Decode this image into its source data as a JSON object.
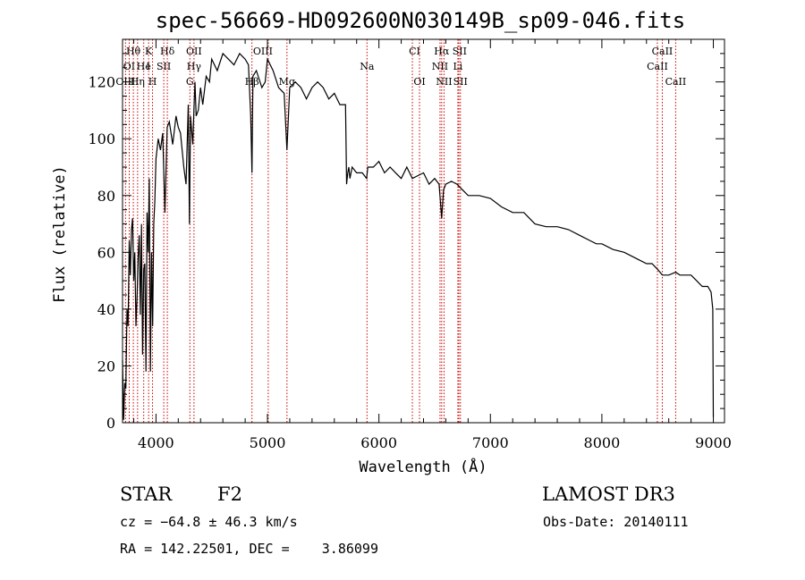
{
  "chart_data": {
    "type": "line",
    "title": "spec-56669-HD092600N030149B_sp09-046.fits",
    "xlabel": "Wavelength (Å)",
    "ylabel": "Flux (relative)",
    "xlim": [
      3700,
      9100
    ],
    "ylim": [
      0,
      135
    ],
    "x_ticks": [
      4000,
      5000,
      6000,
      7000,
      8000,
      9000
    ],
    "y_ticks": [
      0,
      20,
      40,
      60,
      80,
      100,
      120
    ],
    "x_tick_labels": [
      "4000",
      "5000",
      "6000",
      "7000",
      "8000",
      "9000"
    ],
    "y_tick_labels": [
      "0",
      "20",
      "40",
      "60",
      "80",
      "100",
      "120"
    ],
    "series": [
      {
        "name": "spectrum",
        "x": [
          3700,
          3710,
          3720,
          3730,
          3740,
          3750,
          3760,
          3770,
          3780,
          3790,
          3800,
          3810,
          3820,
          3830,
          3840,
          3850,
          3860,
          3870,
          3880,
          3890,
          3900,
          3910,
          3920,
          3930,
          3940,
          3950,
          3960,
          3970,
          3980,
          3990,
          4000,
          4020,
          4040,
          4060,
          4080,
          4100,
          4120,
          4150,
          4180,
          4200,
          4220,
          4250,
          4270,
          4290,
          4300,
          4310,
          4330,
          4340,
          4350,
          4360,
          4380,
          4400,
          4420,
          4450,
          4480,
          4500,
          4550,
          4600,
          4650,
          4700,
          4750,
          4800,
          4830,
          4850,
          4861,
          4870,
          4900,
          4950,
          4980,
          5000,
          5050,
          5100,
          5150,
          5175,
          5200,
          5250,
          5300,
          5350,
          5400,
          5450,
          5500,
          5550,
          5600,
          5650,
          5700,
          5710,
          5720,
          5730,
          5740,
          5760,
          5800,
          5850,
          5890,
          5900,
          5950,
          6000,
          6050,
          6100,
          6150,
          6200,
          6250,
          6300,
          6350,
          6400,
          6450,
          6500,
          6540,
          6563,
          6580,
          6600,
          6650,
          6700,
          6750,
          6800,
          6900,
          7000,
          7100,
          7200,
          7300,
          7400,
          7500,
          7600,
          7700,
          7800,
          7900,
          7950,
          8000,
          8100,
          8200,
          8300,
          8400,
          8450,
          8500,
          8542,
          8600,
          8662,
          8700,
          8750,
          8800,
          8850,
          8900,
          8950,
          8980,
          8995,
          9000
        ],
        "values": [
          22,
          1,
          14,
          12,
          40,
          34,
          64,
          52,
          68,
          72,
          50,
          60,
          34,
          44,
          58,
          66,
          38,
          70,
          24,
          54,
          56,
          18,
          74,
          60,
          86,
          18,
          60,
          34,
          70,
          78,
          93,
          100,
          96,
          102,
          74,
          104,
          106,
          98,
          108,
          104,
          102,
          90,
          84,
          112,
          70,
          108,
          98,
          110,
          120,
          108,
          110,
          118,
          112,
          122,
          120,
          128,
          124,
          130,
          128,
          126,
          130,
          128,
          126,
          108,
          88,
          122,
          124,
          118,
          120,
          128,
          124,
          118,
          116,
          96,
          118,
          120,
          118,
          114,
          118,
          120,
          118,
          114,
          116,
          112,
          112,
          84,
          88,
          90,
          86,
          90,
          88,
          88,
          86,
          90,
          90,
          92,
          88,
          90,
          88,
          86,
          90,
          86,
          87,
          88,
          84,
          86,
          84,
          72,
          82,
          84,
          85,
          84,
          82,
          80,
          80,
          79,
          76,
          74,
          74,
          70,
          69,
          69,
          68,
          66,
          64,
          63,
          63,
          61,
          60,
          58,
          56,
          56,
          54,
          52,
          52,
          53,
          52,
          52,
          52,
          50,
          48,
          48,
          46,
          40,
          2
        ]
      }
    ],
    "emission_lines": [
      {
        "label": "Hθ",
        "wavelength": 3797,
        "row": 1
      },
      {
        "label": "K",
        "wavelength": 3934,
        "row": 1
      },
      {
        "label": "Hδ",
        "wavelength": 4102,
        "row": 1
      },
      {
        "label": "OII",
        "wavelength": 4341,
        "row": 1
      },
      {
        "label": "OIII",
        "wavelength": 4959,
        "row": 1
      },
      {
        "label": "CaII",
        "wavelength": 8542,
        "row": 1
      },
      {
        "label": "CI",
        "wavelength": 6320,
        "row": 1
      },
      {
        "label": "Hα",
        "wavelength": 6563,
        "row": 1
      },
      {
        "label": "SII",
        "wavelength": 6724,
        "row": 1
      },
      {
        "label": "OI",
        "wavelength": 3760,
        "row": 2
      },
      {
        "label": "He",
        "wavelength": 3890,
        "row": 2
      },
      {
        "label": "I",
        "wavelength": 3930,
        "row": 2
      },
      {
        "label": "SII",
        "wavelength": 4070,
        "row": 2
      },
      {
        "label": "Hγ",
        "wavelength": 4341,
        "row": 2
      },
      {
        "label": "Na",
        "wavelength": 5893,
        "row": 2
      },
      {
        "label": "NII",
        "wavelength": 6548,
        "row": 2
      },
      {
        "label": "Li",
        "wavelength": 6708,
        "row": 2
      },
      {
        "label": "CaII",
        "wavelength": 8498,
        "row": 2
      },
      {
        "label": "OIII",
        "wavelength": 3727,
        "row": 3
      },
      {
        "label": "Hη",
        "wavelength": 3835,
        "row": 3
      },
      {
        "label": "H",
        "wavelength": 3969,
        "row": 3
      },
      {
        "label": "G",
        "wavelength": 4304,
        "row": 3
      },
      {
        "label": "Hβ",
        "wavelength": 4861,
        "row": 3
      },
      {
        "label": "Mg",
        "wavelength": 5175,
        "row": 3
      },
      {
        "label": "OI",
        "wavelength": 6364,
        "row": 3
      },
      {
        "label": "NII",
        "wavelength": 6584,
        "row": 3
      },
      {
        "label": "SII",
        "wavelength": 6731,
        "row": 3
      },
      {
        "label": "CaII",
        "wavelength": 8662,
        "row": 3
      }
    ],
    "line_markers": [
      3727,
      3760,
      3797,
      3835,
      3890,
      3934,
      3969,
      4070,
      4102,
      4304,
      4341,
      4861,
      5007,
      5175,
      5893,
      6300,
      6364,
      6548,
      6563,
      6584,
      6708,
      6717,
      6731,
      8498,
      8542,
      8662
    ],
    "line_marker_color": "#cc0000",
    "line_color": "#000000"
  },
  "info": {
    "object_class": "STAR",
    "subclass": "F2",
    "survey": "LAMOST DR3",
    "redshift": "cz = −64.8 ± 46.3 km/s",
    "obs_date": "Obs-Date: 20140111",
    "coords": "RA = 142.22501, DEC =    3.86099"
  }
}
